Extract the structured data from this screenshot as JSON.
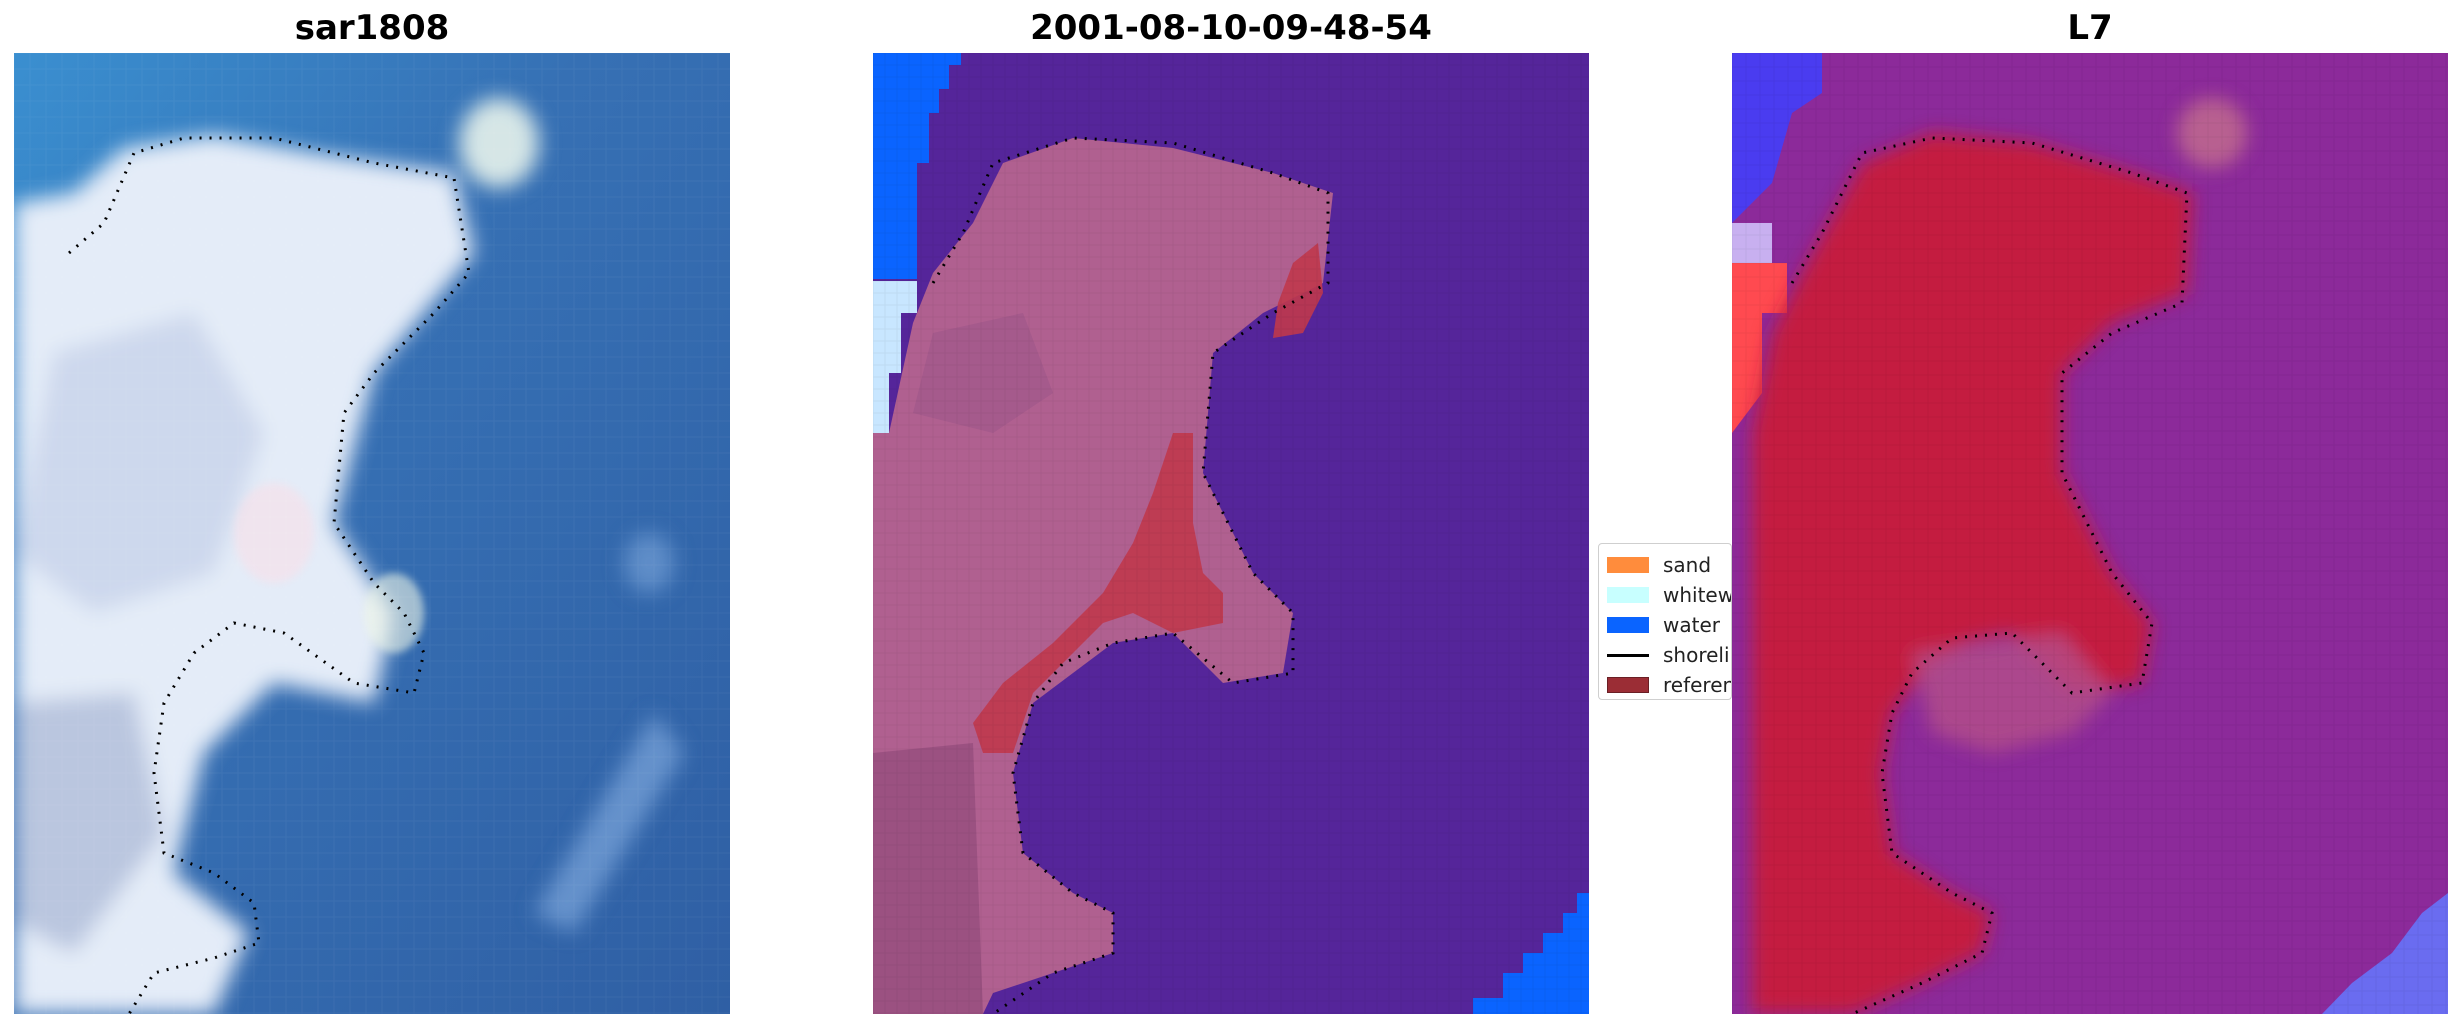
{
  "panels": [
    {
      "title": "sar1808",
      "kind": "rgb-image"
    },
    {
      "title": "2001-08-10-09-48-54",
      "kind": "classified-overlay"
    },
    {
      "title": "L7",
      "kind": "index-map"
    }
  ],
  "legend": {
    "items": [
      {
        "label": "sand",
        "color": "#ff8c3c",
        "type": "patch"
      },
      {
        "label": "whitewater",
        "color": "#c8ffff",
        "type": "patch"
      },
      {
        "label": "water",
        "color": "#0a64ff",
        "type": "patch"
      },
      {
        "label": "shoreline",
        "color": "#000000",
        "type": "line"
      },
      {
        "label": "reference",
        "color": "#9b2d35",
        "type": "patch"
      }
    ]
  },
  "colors": {
    "sea_rgb": "#3a6eb0",
    "land_rgb": "#dfe8f6",
    "land_overlay": "#b06090",
    "sea_overlay": "#55259a",
    "land_index": "#c41a40",
    "sea_index": "#8c2a9a"
  }
}
